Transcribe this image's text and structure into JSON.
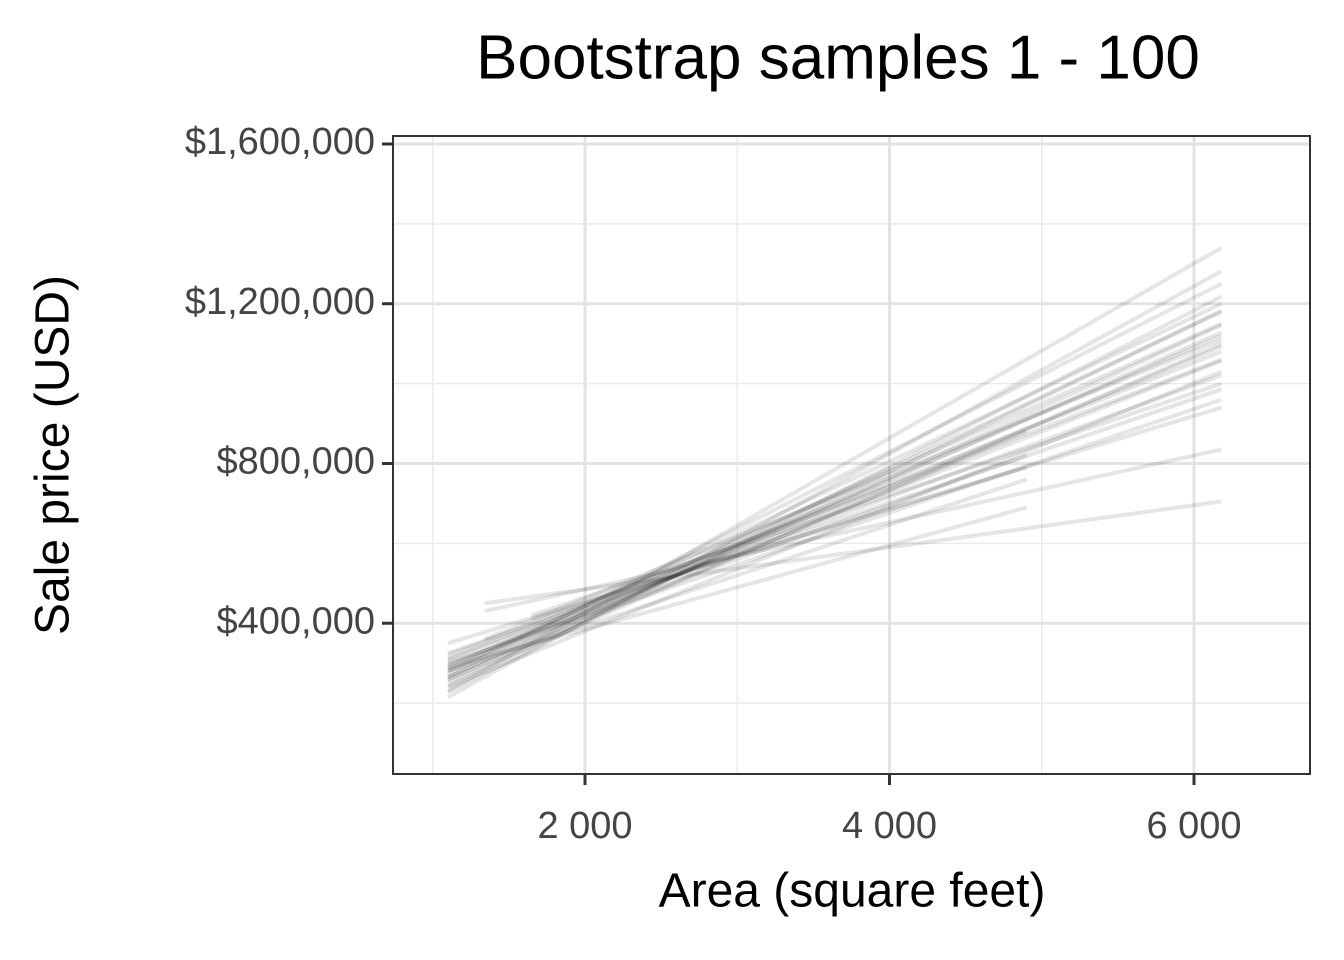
{
  "chart_data": {
    "type": "line",
    "title": "Bootstrap samples 1 - 100",
    "x_label": "Area (square feet)",
    "y_label": "Sale price (USD)",
    "xlim": [
      739,
      6762
    ],
    "ylim": [
      22500,
      1620000
    ],
    "xticks": [
      {
        "value": 2000,
        "label": "2 000"
      },
      {
        "value": 4000,
        "label": "4 000"
      },
      {
        "value": 6000,
        "label": "6 000"
      }
    ],
    "yticks": [
      {
        "value": 400000,
        "label": "$400,000"
      },
      {
        "value": 800000,
        "label": "$800,000"
      },
      {
        "value": 1200000,
        "label": "$1,200,000"
      },
      {
        "value": 1600000,
        "label": "$1,600,000"
      }
    ],
    "xminor": [
      1000,
      3000,
      5000
    ],
    "yminor": [
      200000,
      600000,
      1000000,
      1400000
    ],
    "grid": true,
    "color": "#000000",
    "alpha": 0.1,
    "series": [
      {
        "x": [
          1100,
          6180
        ],
        "values": [
          242500,
          1182300
        ]
      },
      {
        "x": [
          1100,
          6180
        ],
        "values": [
          265000,
          1128600
        ]
      },
      {
        "x": [
          1100,
          6180
        ],
        "values": [
          280000,
          1092800
        ]
      },
      {
        "x": [
          1100,
          6180
        ],
        "values": [
          257500,
          1146500
        ]
      },
      {
        "x": [
          1100,
          6180
        ],
        "values": [
          295000,
          1057000
        ]
      },
      {
        "x": [
          1100,
          6180
        ],
        "values": [
          227500,
          1218100
        ]
      },
      {
        "x": [
          1100,
          6180
        ],
        "values": [
          215000,
          1281800
        ]
      },
      {
        "x": [
          1100,
          6180
        ],
        "values": [
          310000,
          1021200
        ]
      },
      {
        "x": [
          1100,
          6180
        ],
        "values": [
          325000,
          985400
        ]
      },
      {
        "x": [
          1100,
          6180
        ],
        "values": [
          230000,
          1340000
        ]
      },
      {
        "x": [
          1100,
          6180
        ],
        "values": [
          290000,
          1150000
        ]
      },
      {
        "x": [
          1100,
          6180
        ],
        "values": [
          270000,
          1250000
        ]
      },
      {
        "x": [
          1100,
          6180
        ],
        "values": [
          300000,
          960000
        ]
      },
      {
        "x": [
          1100,
          6180
        ],
        "values": [
          350000,
          940000
        ]
      },
      {
        "x": [
          1100,
          6180
        ],
        "values": [
          250000,
          1100000
        ]
      },
      {
        "x": [
          1100,
          6180
        ],
        "values": [
          280000,
          1200000
        ]
      },
      {
        "x": [
          1100,
          6180
        ],
        "values": [
          320000,
          1060000
        ]
      },
      {
        "x": [
          1100,
          4900
        ],
        "values": [
          260000,
          880000
        ]
      },
      {
        "x": [
          1100,
          4900
        ],
        "values": [
          300000,
          820000
        ]
      },
      {
        "x": [
          1100,
          4900
        ],
        "values": [
          280000,
          760000
        ]
      },
      {
        "x": [
          1340,
          6180
        ],
        "values": [
          450000,
          705000
        ]
      },
      {
        "x": [
          1340,
          6180
        ],
        "values": [
          430000,
          835000
        ]
      },
      {
        "x": [
          1650,
          6180
        ],
        "values": [
          420000,
          1000000
        ]
      },
      {
        "x": [
          1340,
          6180
        ],
        "values": [
          360000,
          1110000
        ]
      },
      {
        "x": [
          1100,
          6180
        ],
        "values": [
          240000,
          1030000
        ]
      },
      {
        "x": [
          1100,
          4900
        ],
        "values": [
          290000,
          690000
        ]
      },
      {
        "x": [
          1100,
          6180
        ],
        "values": [
          310000,
          1080000
        ]
      },
      {
        "x": [
          1650,
          4900
        ],
        "values": [
          410000,
          790000
        ]
      },
      {
        "x": [
          1100,
          6180
        ],
        "values": [
          265000,
          1180000
        ]
      },
      {
        "x": [
          1100,
          6180
        ],
        "values": [
          285000,
          1120000
        ]
      }
    ]
  }
}
